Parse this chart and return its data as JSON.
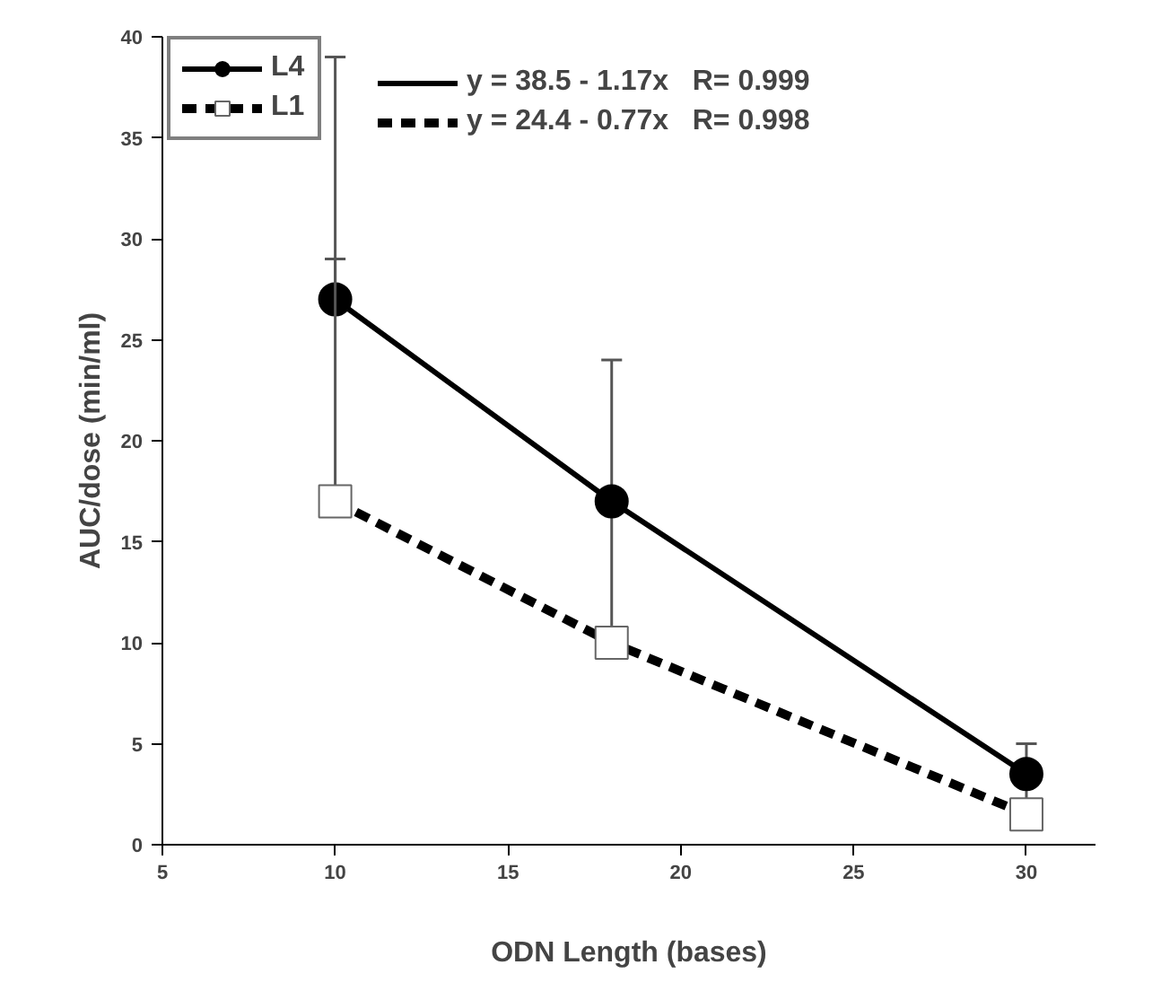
{
  "chart_data": {
    "type": "line",
    "xlabel": "ODN Length (bases)",
    "ylabel": "AUC/dose (min/ml)",
    "x": [
      10,
      18,
      30
    ],
    "series": [
      {
        "name": "L4",
        "color": "#000000",
        "values": [
          27,
          17,
          3.5
        ],
        "errors": [
          [
            27,
            39
          ],
          7,
          1.5
        ],
        "marker": "circle",
        "line_style": "solid"
      },
      {
        "name": "L1",
        "color": "#000000",
        "values": [
          17,
          10,
          1.5
        ],
        "errors": [
          [
            17,
            29
          ],
          null,
          null
        ],
        "marker": "square",
        "line_style": "dashed"
      }
    ],
    "annotations": [
      "y = 38.5 - 1.17x   R= 0.999",
      "y = 24.4 - 0.77x   R= 0.998"
    ],
    "xlim": [
      5,
      32
    ],
    "xticks": [
      5,
      10,
      15,
      20,
      25,
      30
    ],
    "ylim": [
      0,
      40
    ],
    "yticks": [
      0,
      5,
      10,
      15,
      20,
      25,
      30,
      35,
      40
    ],
    "grid": false,
    "legend": "top"
  }
}
